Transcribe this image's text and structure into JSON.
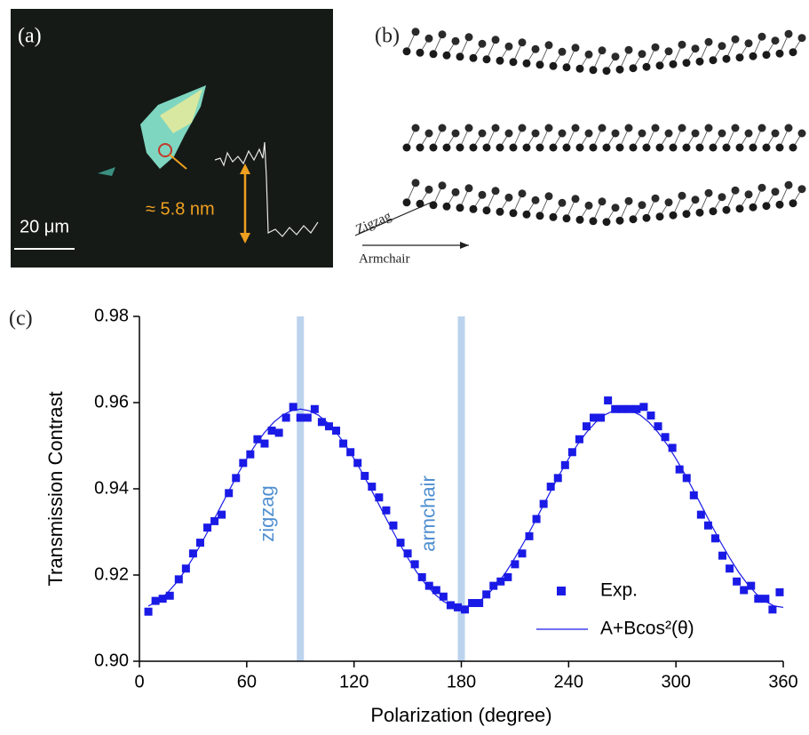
{
  "panels": {
    "a": {
      "label": "(a)",
      "scale_bar": "20 μm",
      "height_annotation": "≈ 5.8 nm"
    },
    "b": {
      "label": "(b)",
      "direction_1": "Zigzag",
      "direction_2": "Armchair"
    }
  },
  "chart_data": {
    "type": "scatter",
    "panel_label": "(c)",
    "x_label": "Polarization (degree)",
    "y_label": "Transmission Contrast",
    "xlim": [
      0,
      360
    ],
    "ylim": [
      0.9,
      0.98
    ],
    "xticks": [
      0,
      60,
      120,
      180,
      240,
      300,
      360
    ],
    "yticks": [
      {
        "value": 0.9,
        "label": "0.90"
      },
      {
        "value": 0.92,
        "label": "0.92"
      },
      {
        "value": 0.94,
        "label": "0.94"
      },
      {
        "value": 0.96,
        "label": "0.96"
      },
      {
        "value": 0.98,
        "label": "0.98"
      }
    ],
    "bands": [
      {
        "x": 90,
        "label": "zigzag"
      },
      {
        "x": 180,
        "label": "armchair"
      }
    ],
    "band_color": "#bcd3ee",
    "band_label_color": "#4f8fd0",
    "series": [
      {
        "name": "Exp.",
        "type": "scatter",
        "color": "#1a1ae6",
        "x": [
          5,
          9,
          13,
          17,
          22,
          26,
          30,
          34,
          38,
          42,
          46,
          50,
          54,
          58,
          62,
          66,
          70,
          74,
          78,
          82,
          86,
          90,
          94,
          98,
          102,
          106,
          110,
          114,
          118,
          122,
          126,
          130,
          134,
          138,
          142,
          146,
          150,
          154,
          158,
          162,
          166,
          170,
          174,
          178,
          182,
          186,
          190,
          194,
          198,
          202,
          206,
          210,
          214,
          218,
          222,
          226,
          230,
          234,
          238,
          242,
          246,
          250,
          254,
          258,
          262,
          266,
          270,
          274,
          278,
          282,
          286,
          290,
          294,
          298,
          302,
          306,
          310,
          314,
          318,
          322,
          326,
          330,
          334,
          338,
          342,
          346,
          350,
          354,
          358
        ],
        "values": [
          0.9115,
          0.914,
          0.9145,
          0.9152,
          0.919,
          0.9215,
          0.925,
          0.9275,
          0.931,
          0.9325,
          0.934,
          0.939,
          0.9425,
          0.946,
          0.948,
          0.9515,
          0.9505,
          0.9535,
          0.953,
          0.9565,
          0.959,
          0.9565,
          0.9565,
          0.9585,
          0.9555,
          0.9545,
          0.9535,
          0.9505,
          0.9485,
          0.946,
          0.943,
          0.9405,
          0.938,
          0.935,
          0.9315,
          0.9275,
          0.925,
          0.9225,
          0.9195,
          0.9175,
          0.9165,
          0.915,
          0.913,
          0.9125,
          0.912,
          0.9135,
          0.9135,
          0.9155,
          0.9175,
          0.9185,
          0.9195,
          0.9225,
          0.925,
          0.929,
          0.933,
          0.9365,
          0.9405,
          0.9425,
          0.9455,
          0.9485,
          0.9515,
          0.9545,
          0.9565,
          0.9565,
          0.9605,
          0.9585,
          0.9585,
          0.9585,
          0.9585,
          0.959,
          0.957,
          0.9545,
          0.952,
          0.9495,
          0.9445,
          0.9425,
          0.9385,
          0.934,
          0.9315,
          0.9285,
          0.9245,
          0.9215,
          0.9185,
          0.9165,
          0.9175,
          0.9145,
          0.9145,
          0.912,
          0.916
        ]
      },
      {
        "name": "A+Bcos²(θ)",
        "type": "line",
        "color": "#1a1ae6",
        "x": [
          5,
          10,
          15,
          20,
          25,
          30,
          35,
          40,
          45,
          50,
          55,
          60,
          65,
          70,
          75,
          80,
          85,
          90,
          95,
          100,
          105,
          110,
          115,
          120,
          125,
          130,
          135,
          140,
          145,
          150,
          155,
          160,
          165,
          170,
          175,
          180,
          185,
          190,
          195,
          200,
          205,
          210,
          215,
          220,
          225,
          230,
          235,
          240,
          245,
          250,
          255,
          260,
          265,
          270,
          275,
          280,
          285,
          290,
          295,
          300,
          305,
          310,
          315,
          320,
          325,
          330,
          335,
          340,
          345,
          350,
          355,
          360
        ],
        "values": [
          0.9128,
          0.9139,
          0.9156,
          0.9179,
          0.9207,
          0.924,
          0.9276,
          0.9315,
          0.9355,
          0.9395,
          0.9434,
          0.947,
          0.9503,
          0.9531,
          0.9554,
          0.9571,
          0.9581,
          0.9585,
          0.9581,
          0.9571,
          0.9554,
          0.9531,
          0.9503,
          0.947,
          0.9434,
          0.9395,
          0.9355,
          0.9315,
          0.9276,
          0.924,
          0.9207,
          0.9179,
          0.9156,
          0.9139,
          0.9128,
          0.9125,
          0.9128,
          0.9139,
          0.9156,
          0.9179,
          0.9207,
          0.924,
          0.9276,
          0.9315,
          0.9355,
          0.9395,
          0.9434,
          0.947,
          0.9503,
          0.9531,
          0.9554,
          0.9571,
          0.9581,
          0.9585,
          0.9581,
          0.9571,
          0.9554,
          0.9531,
          0.9503,
          0.947,
          0.9434,
          0.9395,
          0.9355,
          0.9315,
          0.9276,
          0.924,
          0.9207,
          0.9179,
          0.9156,
          0.9139,
          0.9128,
          0.9125
        ]
      }
    ]
  }
}
